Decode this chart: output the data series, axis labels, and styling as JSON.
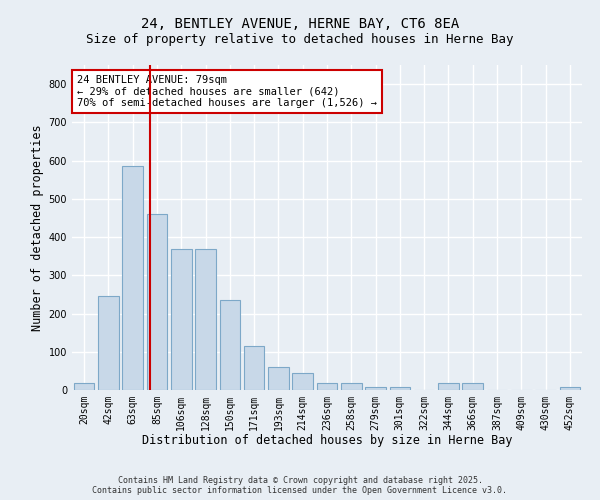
{
  "title_line1": "24, BENTLEY AVENUE, HERNE BAY, CT6 8EA",
  "title_line2": "Size of property relative to detached houses in Herne Bay",
  "xlabel": "Distribution of detached houses by size in Herne Bay",
  "ylabel": "Number of detached properties",
  "categories": [
    "20sqm",
    "42sqm",
    "63sqm",
    "85sqm",
    "106sqm",
    "128sqm",
    "150sqm",
    "171sqm",
    "193sqm",
    "214sqm",
    "236sqm",
    "258sqm",
    "279sqm",
    "301sqm",
    "322sqm",
    "344sqm",
    "366sqm",
    "387sqm",
    "409sqm",
    "430sqm",
    "452sqm"
  ],
  "values": [
    18,
    245,
    585,
    460,
    370,
    370,
    235,
    115,
    60,
    45,
    18,
    18,
    8,
    8,
    0,
    18,
    18,
    0,
    0,
    0,
    8
  ],
  "bar_color": "#c8d8e8",
  "bar_edge_color": "#7da8c8",
  "vline_x": 2.72,
  "vline_color": "#cc0000",
  "annotation_text": "24 BENTLEY AVENUE: 79sqm\n← 29% of detached houses are smaller (642)\n70% of semi-detached houses are larger (1,526) →",
  "annotation_box_color": "#ffffff",
  "annotation_box_edge": "#cc0000",
  "ylim": [
    0,
    850
  ],
  "yticks": [
    0,
    100,
    200,
    300,
    400,
    500,
    600,
    700,
    800
  ],
  "bg_color": "#e8eef4",
  "grid_color": "#ffffff",
  "footer_text": "Contains HM Land Registry data © Crown copyright and database right 2025.\nContains public sector information licensed under the Open Government Licence v3.0.",
  "title_fontsize": 10,
  "subtitle_fontsize": 9,
  "axis_label_fontsize": 8.5,
  "tick_fontsize": 7,
  "annotation_fontsize": 7.5,
  "footer_fontsize": 6
}
